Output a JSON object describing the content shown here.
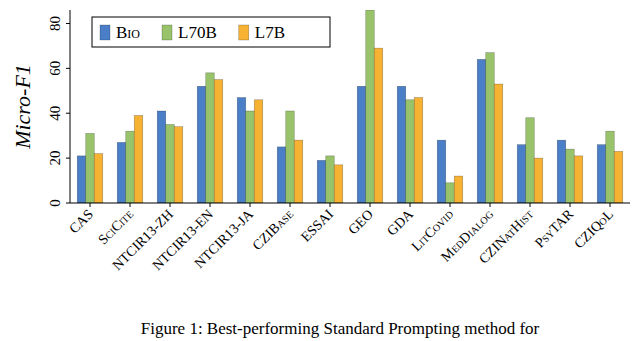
{
  "chart_data": {
    "type": "bar",
    "y_label": "Micro-F1",
    "caption": "Figure 1: Best-performing Standard Prompting method for",
    "categories": [
      "CAS",
      "SciCite",
      "NTCIR13-ZH",
      "NTCIR13-EN",
      "NTCIR13-JA",
      "CZIBase",
      "ESSAI",
      "GEO",
      "GDA",
      "LitCovid",
      "MedDialog",
      "CZINatHist",
      "PsyTAR",
      "CZIQoL"
    ],
    "series": [
      {
        "name": "Bio",
        "color": "#4a7fc8",
        "values": [
          21,
          27,
          41,
          52,
          47,
          25,
          19,
          52,
          52,
          28,
          64,
          26,
          28,
          26
        ]
      },
      {
        "name": "L70B",
        "color": "#98c36a",
        "values": [
          31,
          32,
          35,
          58,
          41,
          41,
          21,
          86,
          46,
          9,
          67,
          38,
          24,
          32
        ]
      },
      {
        "name": "L7B",
        "color": "#f7b233",
        "values": [
          22,
          39,
          34,
          55,
          46,
          28,
          17,
          69,
          47,
          12,
          53,
          20,
          21,
          23
        ]
      }
    ],
    "ylim": [
      0,
      86
    ],
    "yticks": [
      0,
      20,
      40,
      60,
      80
    ],
    "grid": false,
    "legend": "top-left"
  }
}
